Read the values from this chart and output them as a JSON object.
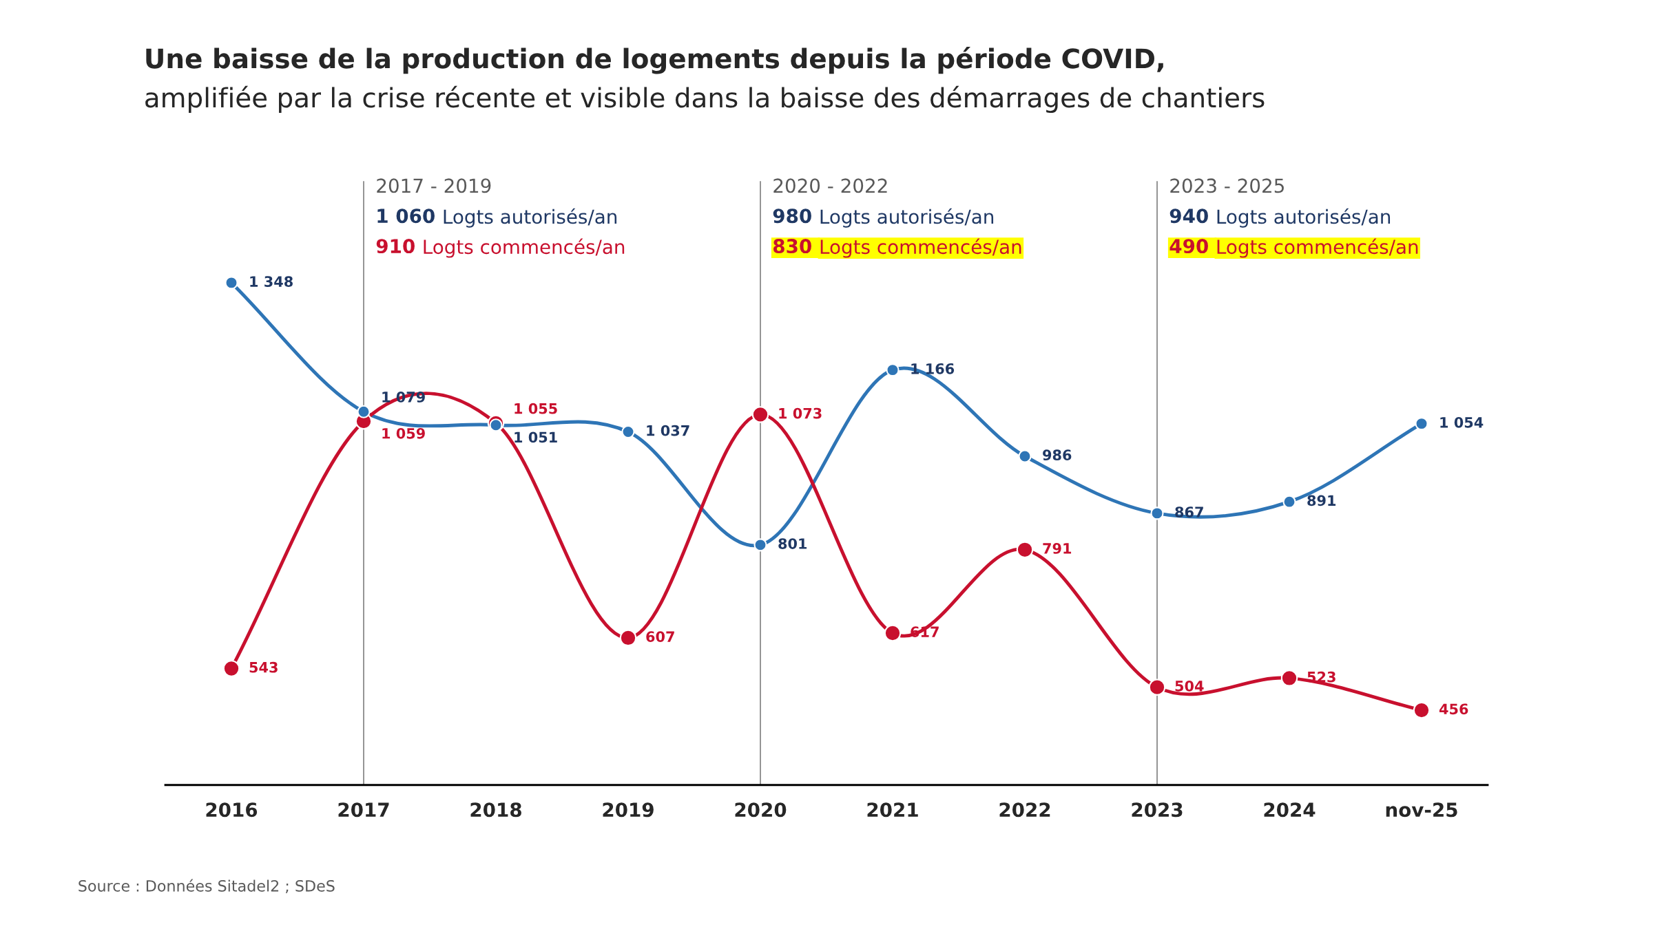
{
  "chart_data": {
    "type": "line",
    "title": "Une baisse de la production de logements depuis la période COVID,",
    "subtitle": "amplifiée par la crise récente et visible dans la baisse des démarrages de chantiers",
    "categories": [
      "2016",
      "2017",
      "2018",
      "2019",
      "2020",
      "2021",
      "2022",
      "2023",
      "2024",
      "nov-25"
    ],
    "series": [
      {
        "color": "#2e75b6",
        "values": [
          1348,
          1079,
          1051,
          1037,
          801,
          1166,
          986,
          867,
          891,
          1054
        ],
        "value_labels": [
          "1 348",
          "1 079",
          "1 051",
          "1 037",
          "801",
          "1 166",
          "986",
          "867",
          "891",
          "1 054"
        ]
      },
      {
        "color": "#c8102e",
        "values": [
          543,
          1059,
          1055,
          607,
          1073,
          617,
          791,
          504,
          523,
          456
        ],
        "value_labels": [
          "543",
          "1 059",
          "1 055",
          "607",
          "1 073",
          "617",
          "791",
          "504",
          "523",
          "456"
        ]
      }
    ],
    "ylim": [
      300,
      1560
    ],
    "marker": "circle",
    "grid": false,
    "legend": false,
    "tick_labels": "x",
    "ref_lines": [
      {
        "axis": "x",
        "value": "2017",
        "color": "#808080"
      },
      {
        "axis": "x",
        "value": "2020",
        "color": "#808080"
      },
      {
        "axis": "x",
        "value": "2023",
        "color": "#808080"
      }
    ],
    "annotations": [
      "2017 - 2019",
      "1 060 Logts autorisés/an",
      "910 Logts commencés/an",
      "2020 - 2022",
      "980 Logts autorisés/an",
      "830 Logts commencés/an",
      "2023 - 2025",
      "940 Logts autorisés/an",
      "490 Logts commencés/an",
      "Source : Données Sitadel2 ; SDeS"
    ]
  }
}
